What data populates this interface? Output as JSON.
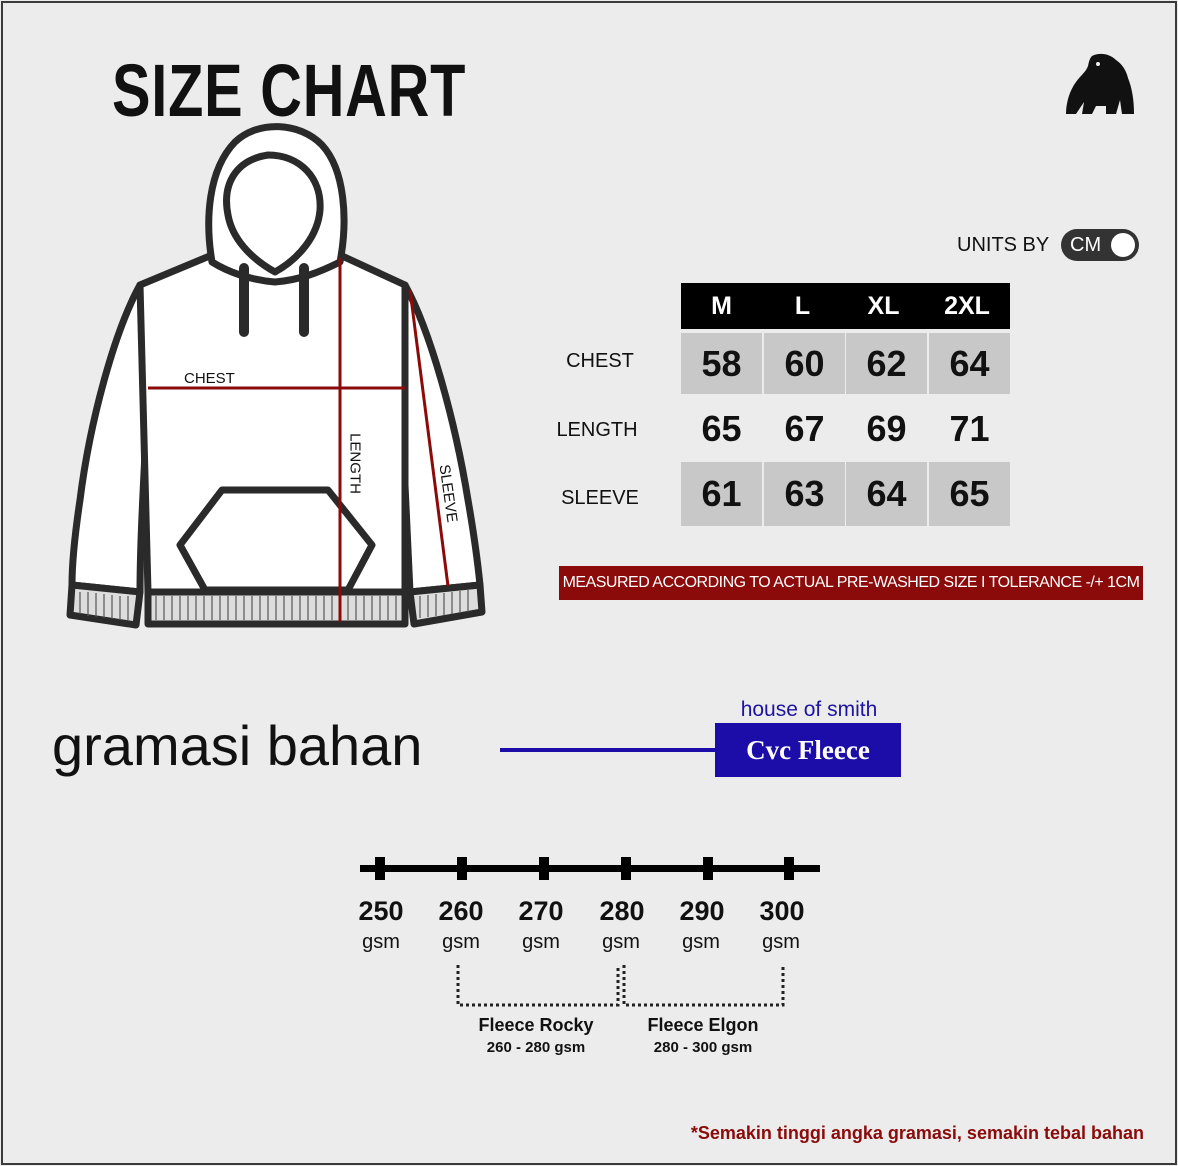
{
  "title": "SIZE CHART",
  "logo": "gorilla-logo",
  "units": {
    "label": "UNITS BY",
    "value": "CM"
  },
  "diagram_labels": {
    "chest": "CHEST",
    "length": "LENGTH",
    "sleeve": "SLEEVE"
  },
  "size_table": {
    "sizes": [
      "M",
      "L",
      "XL",
      "2XL"
    ],
    "rows": [
      {
        "label": "CHEST",
        "values": [
          "58",
          "60",
          "62",
          "64"
        ]
      },
      {
        "label": "LENGTH",
        "values": [
          "65",
          "67",
          "69",
          "71"
        ]
      },
      {
        "label": "SLEEVE",
        "values": [
          "61",
          "63",
          "64",
          "65"
        ]
      }
    ]
  },
  "banner": "MEASURED ACCORDING TO ACTUAL PRE-WASHED SIZE  I  TOLERANCE -/+ 1CM",
  "gramasi": {
    "label": "gramasi bahan",
    "brand": "house of smith",
    "fabric": "Cvc Fleece"
  },
  "scale": {
    "ticks": [
      {
        "value": "250",
        "unit": "gsm"
      },
      {
        "value": "260",
        "unit": "gsm"
      },
      {
        "value": "270",
        "unit": "gsm"
      },
      {
        "value": "280",
        "unit": "gsm"
      },
      {
        "value": "290",
        "unit": "gsm"
      },
      {
        "value": "300",
        "unit": "gsm"
      }
    ],
    "ranges": [
      {
        "name": "Fleece Rocky",
        "range": "260 - 280 gsm"
      },
      {
        "name": "Fleece Elgon",
        "range": "280 - 300 gsm"
      }
    ]
  },
  "note": "*Semakin tinggi angka gramasi, semakin tebal bahan",
  "colors": {
    "accent_red": "#8b0a0a",
    "accent_blue": "#1c0ca8",
    "header": "#000000",
    "shade": "#c8c8c8"
  }
}
